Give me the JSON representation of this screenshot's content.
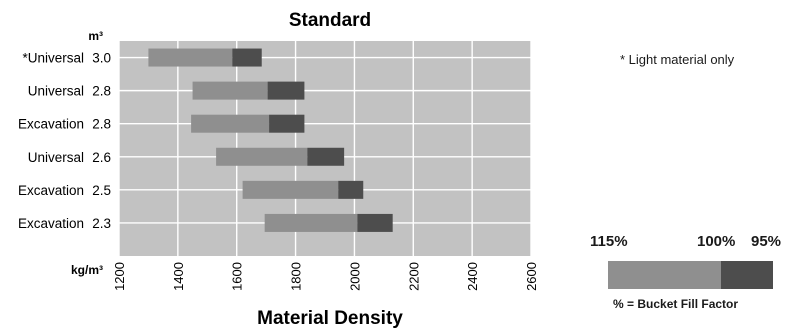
{
  "chart_data": {
    "type": "bar",
    "orientation": "horizontal",
    "stacked": true,
    "title": "Standard",
    "xlabel": "Material Density",
    "x_unit": "kg/m³",
    "y_unit": "m³",
    "xlim": [
      1200,
      2600
    ],
    "x_ticks": [
      1200,
      1400,
      1600,
      1800,
      2000,
      2200,
      2400,
      2600
    ],
    "grid": true,
    "categories": [
      {
        "name": "*Universal",
        "size": "3.0"
      },
      {
        "name": "Universal",
        "size": "2.8"
      },
      {
        "name": "Excavation",
        "size": "2.8"
      },
      {
        "name": "Universal",
        "size": "2.6"
      },
      {
        "name": "Excavation",
        "size": "2.5"
      },
      {
        "name": "Excavation",
        "size": "2.3"
      }
    ],
    "series": [
      {
        "name": "115%",
        "color": "#8f8f8f",
        "ranges": [
          [
            1300,
            1585
          ],
          [
            1450,
            1705
          ],
          [
            1445,
            1710
          ],
          [
            1530,
            1840
          ],
          [
            1620,
            1945
          ],
          [
            1695,
            2010
          ]
        ]
      },
      {
        "name": "100% – 95%",
        "color": "#4d4d4d",
        "ranges": [
          [
            1585,
            1685
          ],
          [
            1705,
            1830
          ],
          [
            1710,
            1830
          ],
          [
            1840,
            1965
          ],
          [
            1945,
            2030
          ],
          [
            2010,
            2130
          ]
        ]
      }
    ]
  },
  "note": "* Light material only",
  "legend": {
    "label_left": "115%",
    "label_mid": "100%",
    "label_right": "95%",
    "caption": "% = Bucket Fill Factor",
    "light_color": "#8f8f8f",
    "dark_color": "#4d4d4d"
  },
  "colors": {
    "plot_background": "#c2c2c2",
    "grid": "#ffffff"
  }
}
